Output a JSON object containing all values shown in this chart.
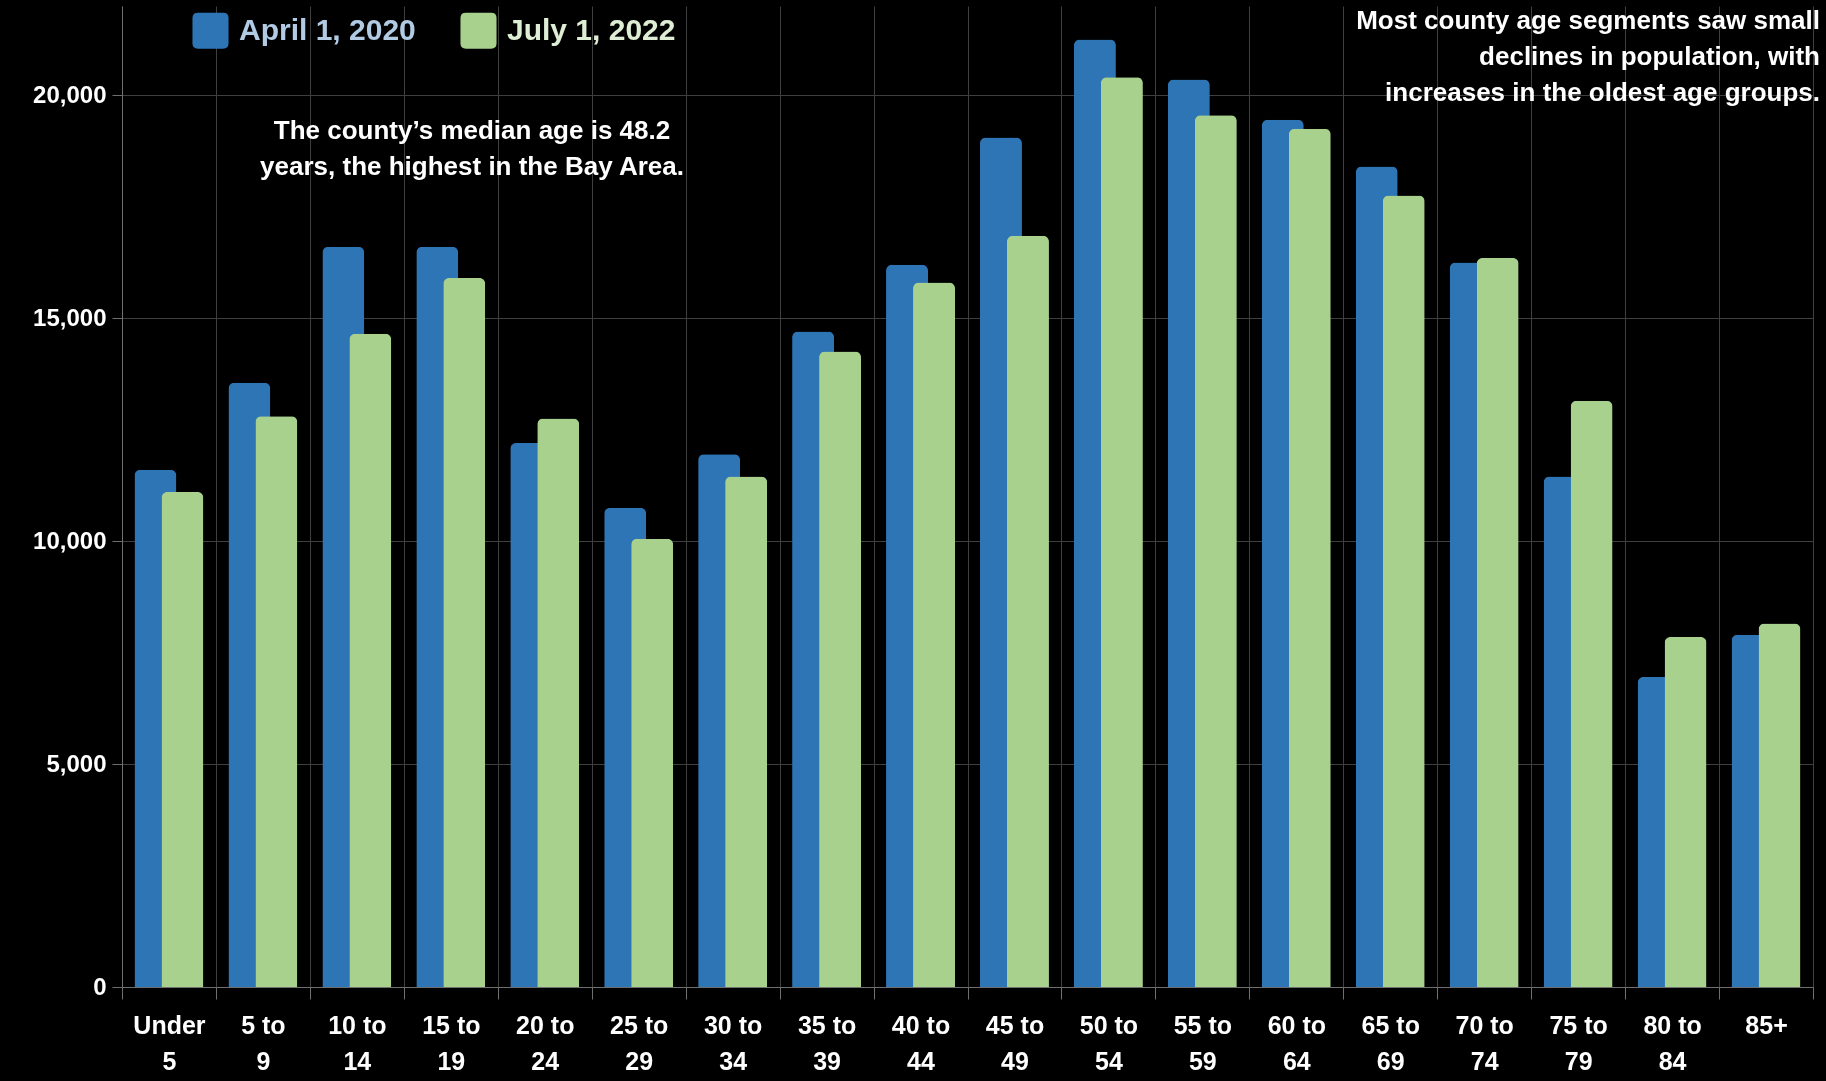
{
  "chart_data": {
    "type": "bar",
    "categories": [
      "Under 5",
      "5 to 9",
      "10 to 14",
      "15 to 19",
      "20 to 24",
      "25 to 29",
      "30 to 34",
      "35 to 39",
      "40 to 44",
      "45 to 49",
      "50 to 54",
      "55 to 59",
      "60 to 64",
      "65 to 69",
      "70 to 74",
      "75 to 79",
      "80 to 84",
      "85+"
    ],
    "series": [
      {
        "name": "April 1, 2020",
        "color": "#2e75b6",
        "values": [
          11600,
          13550,
          16600,
          16600,
          12200,
          10750,
          11950,
          14700,
          16200,
          19050,
          21250,
          20350,
          19450,
          18400,
          16250,
          11450,
          6950,
          7900
        ]
      },
      {
        "name": "July 1, 2022",
        "color": "#a9d18e",
        "values": [
          11100,
          12800,
          14650,
          15900,
          12750,
          10050,
          11450,
          14250,
          15800,
          16850,
          20400,
          19550,
          19250,
          17750,
          16350,
          13150,
          7850,
          8150
        ]
      }
    ],
    "ylim": [
      0,
      22000
    ],
    "yticks": [
      0,
      {
        "value": 5000,
        "label": "5,000"
      },
      {
        "value": 10000,
        "label": "10,000"
      },
      {
        "value": 15000,
        "label": "15,000"
      },
      {
        "value": 20000,
        "label": "20,000"
      }
    ],
    "grid": true,
    "legend": "top left",
    "annotations": [
      "The county’s median age is 48.2 years, the highest in the Bay Area.",
      "Most county age segments saw small declines in population, with increases in the oldest age groups."
    ]
  }
}
